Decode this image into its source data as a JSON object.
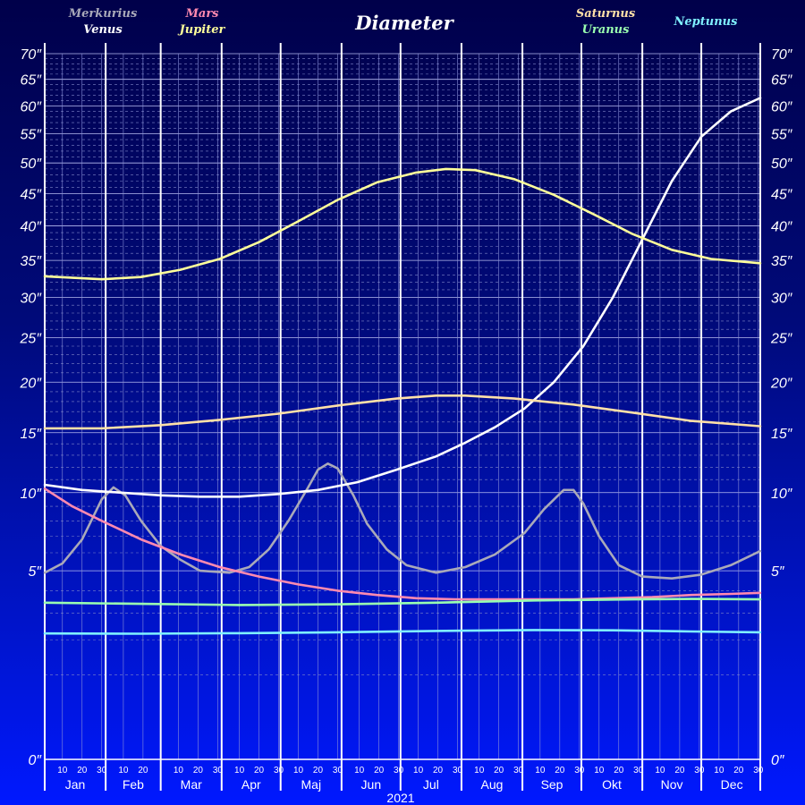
{
  "chart_data": {
    "type": "line",
    "title": "Diameter",
    "xlabel": "2021",
    "ylabel": "",
    "y_axis": {
      "scale": "sqrt",
      "range": [
        0,
        70
      ],
      "ticks": [
        0,
        5,
        10,
        15,
        20,
        25,
        30,
        35,
        40,
        45,
        50,
        55,
        60,
        65,
        70
      ],
      "tick_labels": [
        "0″",
        "5″",
        "10″",
        "15″",
        "20″",
        "25″",
        "30″",
        "35″",
        "40″",
        "45″",
        "50″",
        "55″",
        "60″",
        "65″",
        "70″"
      ]
    },
    "x_axis": {
      "range_days": [
        1,
        365
      ],
      "months": [
        "Jan",
        "Feb",
        "Mar",
        "Apr",
        "Maj",
        "Jun",
        "Jul",
        "Aug",
        "Sep",
        "Okt",
        "Nov",
        "Dec"
      ],
      "month_lengths": [
        31,
        28,
        31,
        30,
        31,
        30,
        31,
        31,
        30,
        31,
        30,
        31
      ],
      "day_ticks": [
        "10",
        "20",
        "30"
      ]
    },
    "grid": true,
    "legend_position": "top",
    "series": [
      {
        "name": "Merkurius",
        "color": "#a9a9b9",
        "points": [
          [
            1,
            4.9
          ],
          [
            10,
            5.4
          ],
          [
            20,
            6.8
          ],
          [
            30,
            9.5
          ],
          [
            36,
            10.4
          ],
          [
            42,
            9.8
          ],
          [
            50,
            8.0
          ],
          [
            60,
            6.4
          ],
          [
            70,
            5.6
          ],
          [
            80,
            5.0
          ],
          [
            95,
            4.9
          ],
          [
            105,
            5.2
          ],
          [
            115,
            6.2
          ],
          [
            125,
            8.0
          ],
          [
            135,
            10.4
          ],
          [
            140,
            11.8
          ],
          [
            145,
            12.3
          ],
          [
            150,
            11.9
          ],
          [
            158,
            9.8
          ],
          [
            165,
            7.8
          ],
          [
            175,
            6.2
          ],
          [
            185,
            5.3
          ],
          [
            200,
            4.9
          ],
          [
            215,
            5.2
          ],
          [
            230,
            5.9
          ],
          [
            245,
            7.2
          ],
          [
            255,
            8.8
          ],
          [
            265,
            10.2
          ],
          [
            270,
            10.2
          ],
          [
            275,
            9.2
          ],
          [
            283,
            7.0
          ],
          [
            293,
            5.3
          ],
          [
            305,
            4.7
          ],
          [
            320,
            4.6
          ],
          [
            335,
            4.8
          ],
          [
            350,
            5.3
          ],
          [
            365,
            6.1
          ]
        ]
      },
      {
        "name": "Venus",
        "color": "#ffffff",
        "points": [
          [
            1,
            10.6
          ],
          [
            20,
            10.2
          ],
          [
            40,
            10.0
          ],
          [
            60,
            9.8
          ],
          [
            80,
            9.7
          ],
          [
            100,
            9.7
          ],
          [
            120,
            9.9
          ],
          [
            140,
            10.2
          ],
          [
            160,
            10.8
          ],
          [
            180,
            11.8
          ],
          [
            200,
            12.9
          ],
          [
            215,
            14.1
          ],
          [
            230,
            15.5
          ],
          [
            245,
            17.3
          ],
          [
            260,
            20.0
          ],
          [
            275,
            24.0
          ],
          [
            290,
            30.0
          ],
          [
            305,
            38.0
          ],
          [
            320,
            47.0
          ],
          [
            335,
            54.5
          ],
          [
            350,
            59.0
          ],
          [
            365,
            61.5
          ]
        ]
      },
      {
        "name": "Mars",
        "color": "#ff8ab0",
        "points": [
          [
            1,
            10.3
          ],
          [
            15,
            9.0
          ],
          [
            30,
            8.0
          ],
          [
            50,
            6.8
          ],
          [
            70,
            5.9
          ],
          [
            90,
            5.2
          ],
          [
            110,
            4.7
          ],
          [
            130,
            4.3
          ],
          [
            150,
            4.0
          ],
          [
            170,
            3.8
          ],
          [
            190,
            3.65
          ],
          [
            210,
            3.6
          ],
          [
            230,
            3.6
          ],
          [
            250,
            3.6
          ],
          [
            270,
            3.6
          ],
          [
            290,
            3.65
          ],
          [
            310,
            3.7
          ],
          [
            330,
            3.8
          ],
          [
            350,
            3.85
          ],
          [
            365,
            3.9
          ]
        ]
      },
      {
        "name": "Jupiter",
        "color": "#ffff9a",
        "points": [
          [
            1,
            32.8
          ],
          [
            30,
            32.4
          ],
          [
            50,
            32.7
          ],
          [
            70,
            33.7
          ],
          [
            90,
            35.2
          ],
          [
            110,
            37.6
          ],
          [
            130,
            40.7
          ],
          [
            150,
            44.0
          ],
          [
            170,
            46.8
          ],
          [
            190,
            48.4
          ],
          [
            205,
            49.0
          ],
          [
            220,
            48.8
          ],
          [
            240,
            47.3
          ],
          [
            260,
            44.8
          ],
          [
            280,
            41.8
          ],
          [
            300,
            38.8
          ],
          [
            320,
            36.5
          ],
          [
            340,
            35.2
          ],
          [
            365,
            34.6
          ]
        ]
      },
      {
        "name": "Saturnus",
        "color": "#ffe0a8",
        "points": [
          [
            1,
            15.4
          ],
          [
            30,
            15.4
          ],
          [
            60,
            15.7
          ],
          [
            90,
            16.2
          ],
          [
            120,
            16.8
          ],
          [
            150,
            17.6
          ],
          [
            180,
            18.3
          ],
          [
            200,
            18.6
          ],
          [
            215,
            18.6
          ],
          [
            240,
            18.3
          ],
          [
            270,
            17.7
          ],
          [
            300,
            16.9
          ],
          [
            330,
            16.1
          ],
          [
            365,
            15.6
          ]
        ]
      },
      {
        "name": "Uranus",
        "color": "#9affb0",
        "points": [
          [
            1,
            3.45
          ],
          [
            50,
            3.4
          ],
          [
            100,
            3.35
          ],
          [
            150,
            3.38
          ],
          [
            200,
            3.45
          ],
          [
            250,
            3.55
          ],
          [
            300,
            3.6
          ],
          [
            330,
            3.62
          ],
          [
            365,
            3.6
          ]
        ]
      },
      {
        "name": "Neptunus",
        "color": "#7ff0ff",
        "points": [
          [
            1,
            2.23
          ],
          [
            50,
            2.22
          ],
          [
            100,
            2.24
          ],
          [
            150,
            2.27
          ],
          [
            200,
            2.32
          ],
          [
            250,
            2.35
          ],
          [
            290,
            2.34
          ],
          [
            330,
            2.3
          ],
          [
            365,
            2.27
          ]
        ]
      }
    ]
  }
}
